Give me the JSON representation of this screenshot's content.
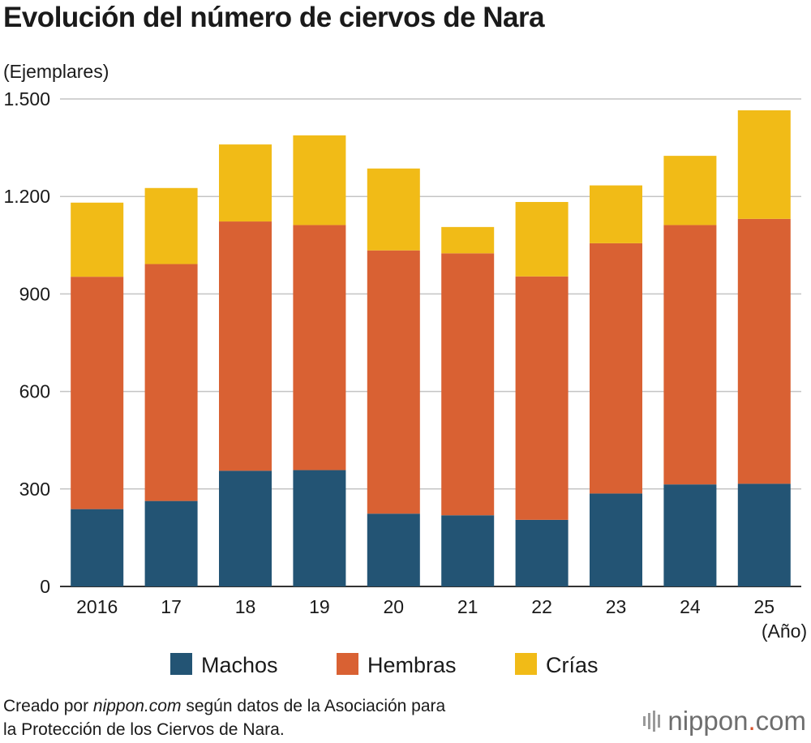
{
  "title": "Evolución del número de ciervos de Nara",
  "source": {
    "prefix": "Creado por ",
    "site": "nippon.com",
    "line1_rest": " según datos de la Asociación para",
    "line2": "la Protección de los Ciervos de Nara."
  },
  "brand": {
    "name": "nippon",
    "dot": ".",
    "tld": "com"
  },
  "chart_data": {
    "type": "bar",
    "stacked": true,
    "ylabel": "(Ejemplares)",
    "xlabel": "(Año)",
    "ylim": [
      0,
      1500
    ],
    "yticks": [
      0,
      300,
      600,
      900,
      1200,
      1500
    ],
    "ytick_labels": [
      "0",
      "300",
      "600",
      "900",
      "1.200",
      "1.500"
    ],
    "grid": true,
    "legend_position": "bottom",
    "categories": [
      "2016",
      "17",
      "18",
      "19",
      "20",
      "21",
      "22",
      "23",
      "24",
      "25"
    ],
    "series": [
      {
        "name": "Machos",
        "color": "#235474",
        "values": [
          238,
          263,
          356,
          358,
          224,
          219,
          205,
          286,
          314,
          316
        ]
      },
      {
        "name": "Hembras",
        "color": "#d96133",
        "values": [
          715,
          729,
          767,
          754,
          810,
          806,
          749,
          770,
          798,
          815
        ]
      },
      {
        "name": "Crías",
        "color": "#f1bb17",
        "values": [
          228,
          234,
          237,
          276,
          252,
          81,
          229,
          178,
          213,
          334
        ]
      }
    ]
  }
}
